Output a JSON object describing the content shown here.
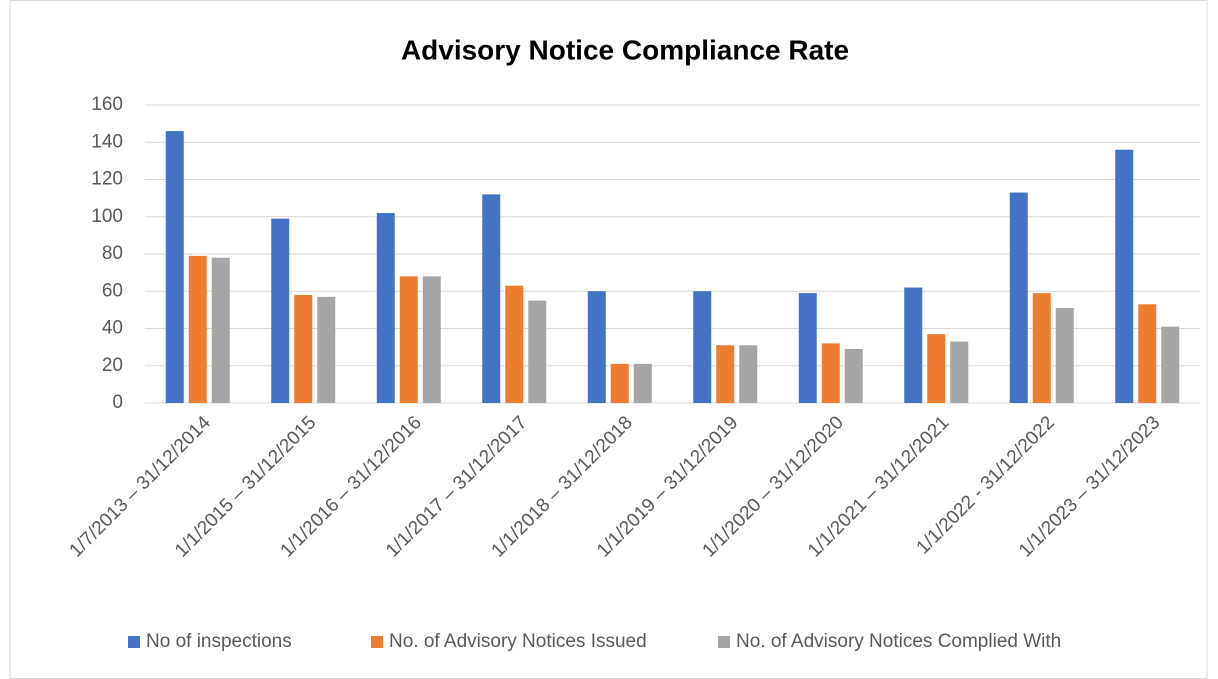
{
  "chart_data": {
    "type": "bar",
    "title": "Advisory Notice Compliance Rate",
    "categories": [
      "1/7/2013 – 31/12/2014",
      "1/1/2015 – 31/12/2015",
      "1/1/2016 – 31/12/2016",
      "1/1/2017 – 31/12/2017",
      "1/1/2018 – 31/12/2018",
      "1/1/2019 – 31/12/2019",
      "1/1/2020 – 31/12/2020",
      "1/1/2021 – 31/12/2021",
      "1/1/2022 - 31/12/2022",
      "1/1/2023 – 31/12/2023"
    ],
    "series": [
      {
        "name": "No of inspections",
        "color": "#4472c4",
        "values": [
          146,
          99,
          102,
          112,
          60,
          60,
          59,
          62,
          113,
          136
        ]
      },
      {
        "name": "No. of Advisory Notices Issued",
        "color": "#ed7d31",
        "values": [
          79,
          58,
          68,
          63,
          21,
          31,
          32,
          37,
          59,
          53
        ]
      },
      {
        "name": "No. of Advisory Notices Complied With",
        "color": "#a5a5a5",
        "values": [
          78,
          57,
          68,
          55,
          21,
          31,
          29,
          33,
          51,
          41
        ]
      }
    ],
    "ylim": [
      0,
      160
    ],
    "yticks": [
      0,
      20,
      40,
      60,
      80,
      100,
      120,
      140,
      160
    ],
    "grid": true,
    "legend": "bottom"
  }
}
